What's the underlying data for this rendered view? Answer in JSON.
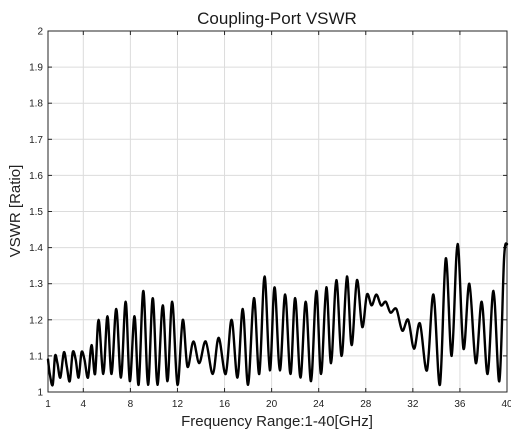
{
  "chart_data": {
    "type": "line",
    "title": "Coupling-Port VSWR",
    "xlabel": "Frequency Range:1-40[GHz]",
    "ylabel": "VSWR [Ratio]",
    "xlim": [
      1,
      40
    ],
    "ylim": [
      1,
      2
    ],
    "grid": true,
    "x_ticks": [
      1,
      4,
      8,
      12,
      16,
      20,
      24,
      28,
      32,
      36,
      40
    ],
    "y_ticks": [
      1,
      1.1,
      1.2,
      1.3,
      1.4,
      1.5,
      1.6,
      1.7,
      1.8,
      1.9,
      2
    ],
    "x_tick_labels": [
      "1",
      "4",
      "8",
      "12",
      "16",
      "20",
      "24",
      "28",
      "32",
      "36",
      "40"
    ],
    "y_tick_labels": [
      "1",
      "1.1",
      "1.2",
      "1.3",
      "1.4",
      "1.5",
      "1.6",
      "1.7",
      "1.8",
      "1.9",
      "2"
    ],
    "series": [
      {
        "color": "#000000",
        "x": [
          1.0,
          1.15,
          1.4,
          1.6,
          1.8,
          2.05,
          2.35,
          2.6,
          2.85,
          3.1,
          3.35,
          3.6,
          3.85,
          4.1,
          4.4,
          4.7,
          5.0,
          5.3,
          5.7,
          6.05,
          6.4,
          6.8,
          7.2,
          7.6,
          7.95,
          8.35,
          8.7,
          9.1,
          9.5,
          9.9,
          10.3,
          10.75,
          11.15,
          11.55,
          12.0,
          12.45,
          12.85,
          13.35,
          13.85,
          14.4,
          15.0,
          15.5,
          16.1,
          16.6,
          17.1,
          17.55,
          18.0,
          18.5,
          18.95,
          19.4,
          19.85,
          20.25,
          20.7,
          21.15,
          21.6,
          22.0,
          22.45,
          22.9,
          23.35,
          23.8,
          24.2,
          24.65,
          25.05,
          25.5,
          25.95,
          26.4,
          26.8,
          27.25,
          27.7,
          28.1,
          28.5,
          28.9,
          29.3,
          29.7,
          30.1,
          30.6,
          31.1,
          31.6,
          32.1,
          32.6,
          33.2,
          33.75,
          34.3,
          34.8,
          35.3,
          35.8,
          36.3,
          36.8,
          37.35,
          37.85,
          38.35,
          38.85,
          39.35,
          39.75,
          40.0
        ],
        "y": [
          1.09,
          1.05,
          1.02,
          1.1,
          1.08,
          1.04,
          1.11,
          1.07,
          1.03,
          1.11,
          1.09,
          1.04,
          1.11,
          1.09,
          1.04,
          1.13,
          1.05,
          1.2,
          1.05,
          1.21,
          1.05,
          1.23,
          1.04,
          1.25,
          1.03,
          1.21,
          1.02,
          1.28,
          1.02,
          1.26,
          1.02,
          1.24,
          1.03,
          1.25,
          1.02,
          1.2,
          1.07,
          1.14,
          1.08,
          1.14,
          1.05,
          1.15,
          1.05,
          1.2,
          1.04,
          1.23,
          1.02,
          1.26,
          1.05,
          1.32,
          1.06,
          1.29,
          1.06,
          1.27,
          1.05,
          1.26,
          1.04,
          1.25,
          1.03,
          1.28,
          1.05,
          1.29,
          1.08,
          1.31,
          1.1,
          1.32,
          1.13,
          1.31,
          1.18,
          1.27,
          1.24,
          1.27,
          1.24,
          1.25,
          1.22,
          1.23,
          1.17,
          1.2,
          1.12,
          1.19,
          1.06,
          1.27,
          1.02,
          1.37,
          1.1,
          1.41,
          1.12,
          1.3,
          1.08,
          1.25,
          1.05,
          1.28,
          1.03,
          1.37,
          1.41
        ]
      }
    ]
  }
}
